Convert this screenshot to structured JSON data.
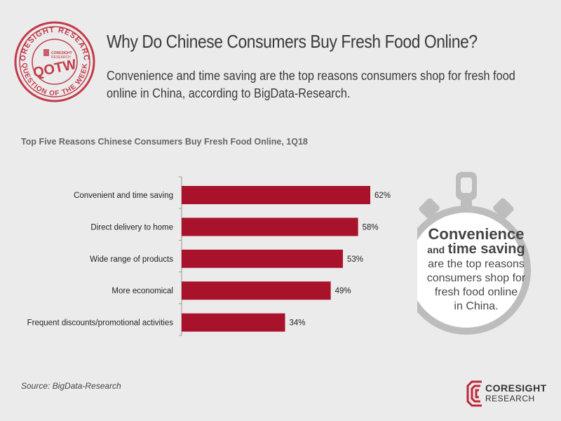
{
  "header": {
    "title": "Why Do Chinese Consumers Buy Fresh Food Online?",
    "subtitle": "Convenience and time saving are the top reasons consumers shop for fresh food online in China, according to BigData-Research."
  },
  "badge": {
    "ring_text": "CORESIGHT RESEARCH · QUESTION OF THE WEEK",
    "center_text": "QOTW",
    "mini_text": "CORESIGHT RESEARCH",
    "color": "#c0283a"
  },
  "chart_data": {
    "type": "bar",
    "orientation": "horizontal",
    "title": "Top Five Reasons Chinese Consumers Buy Fresh Food Online, 1Q18",
    "categories": [
      "Convenient and time saving",
      "Direct delivery to home",
      "Wide range of products",
      "More economical",
      "Frequent discounts/promotional activities"
    ],
    "values": [
      62,
      58,
      53,
      49,
      34
    ],
    "value_labels": [
      "62%",
      "58%",
      "53%",
      "49%",
      "34%"
    ],
    "bar_color": "#a8122a",
    "xlim": [
      0,
      100
    ],
    "grid": false
  },
  "callout": {
    "line1": "Convenience",
    "line2a": "and",
    "line2b": "time saving",
    "line3": "are the top reasons",
    "line4": "consumers shop for",
    "line5": "fresh food online",
    "line6": "in China."
  },
  "source": "Source: BigData-Research",
  "logo": {
    "line1": "CORESIGHT",
    "line2": "RESEARCH",
    "color": "#c0283a"
  }
}
